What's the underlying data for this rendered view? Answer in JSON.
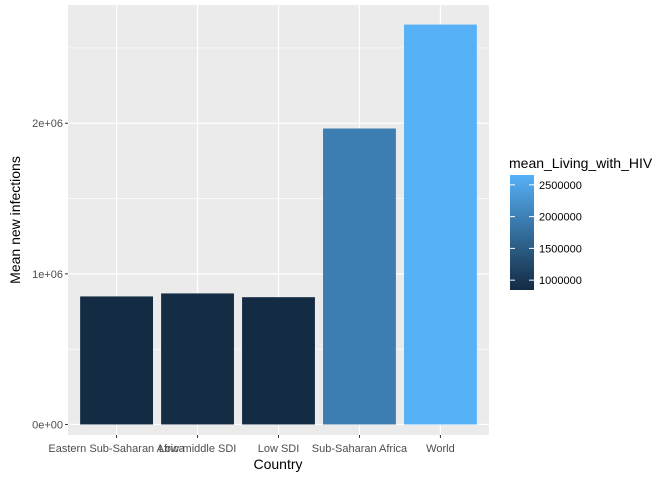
{
  "chart_data": {
    "type": "bar",
    "title": "",
    "xlabel": "Country",
    "ylabel": "Mean new infections",
    "categories": [
      "Eastern Sub-Saharan Africa",
      "Low-middle SDI",
      "Low SDI",
      "Sub-Saharan Africa",
      "World"
    ],
    "values": [
      850000,
      870000,
      845000,
      1965000,
      2655000
    ],
    "fill_values": [
      850000,
      870000,
      845000,
      1965000,
      2655000
    ],
    "ylim": [
      -70000,
      2785000
    ],
    "y_ticks": [
      0,
      1000000,
      2000000
    ],
    "y_tick_labels": [
      "0e+00",
      "1e+06",
      "2e+06"
    ],
    "grid": true,
    "legend": {
      "title": "mean_Living_with_HIV",
      "position": "right",
      "range": [
        845000,
        2655000
      ],
      "breaks": [
        1000000,
        1500000,
        2000000,
        2500000
      ],
      "labels": [
        "1000000",
        "1500000",
        "2000000",
        "2500000"
      ],
      "color_low": "#132B43",
      "color_high": "#56B1F7"
    },
    "panel_background": "#EBEBEB",
    "grid_color": "#FFFFFF"
  }
}
